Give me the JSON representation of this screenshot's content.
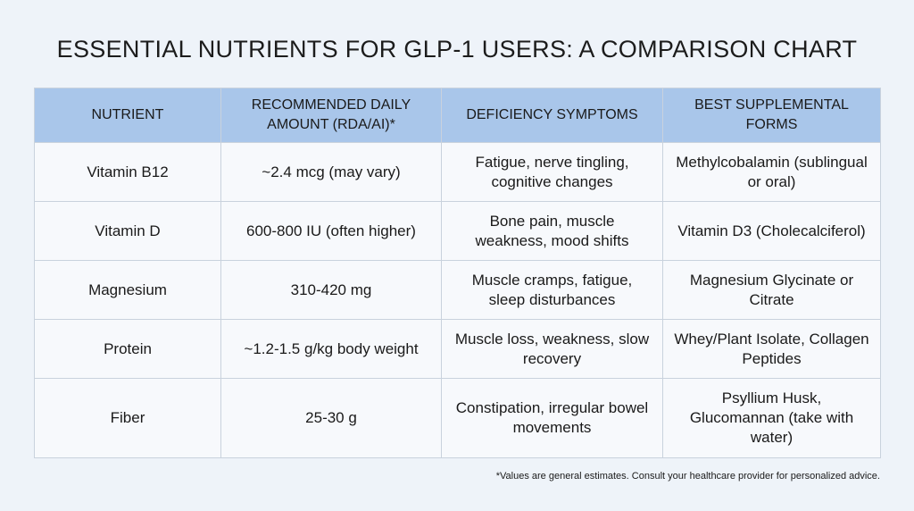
{
  "title": "ESSENTIAL NUTRIENTS FOR GLP-1 USERS: A COMPARISON CHART",
  "table": {
    "headers": [
      "NUTRIENT",
      "RECOMMENDED DAILY AMOUNT (RDA/AI)*",
      "DEFICIENCY SYMPTOMS",
      "BEST SUPPLEMENTAL FORMS"
    ],
    "rows": [
      [
        "Vitamin B12",
        "~2.4 mcg (may vary)",
        "Fatigue, nerve tingling, cognitive changes",
        "Methylcobalamin (sublingual or oral)"
      ],
      [
        "Vitamin D",
        "600-800 IU (often higher)",
        "Bone pain, muscle weakness, mood shifts",
        "Vitamin D3 (Cholecalciferol)"
      ],
      [
        "Magnesium",
        "310-420 mg",
        "Muscle cramps, fatigue, sleep disturbances",
        "Magnesium Glycinate or Citrate"
      ],
      [
        "Protein",
        "~1.2-1.5 g/kg body weight",
        "Muscle loss, weakness, slow recovery",
        "Whey/Plant Isolate, Collagen Peptides"
      ],
      [
        "Fiber",
        "25-30 g",
        "Constipation, irregular bowel movements",
        "Psyllium Husk, Glucomannan (take with water)"
      ]
    ]
  },
  "footnote": "*Values are general estimates. Consult your healthcare provider for personalized advice."
}
